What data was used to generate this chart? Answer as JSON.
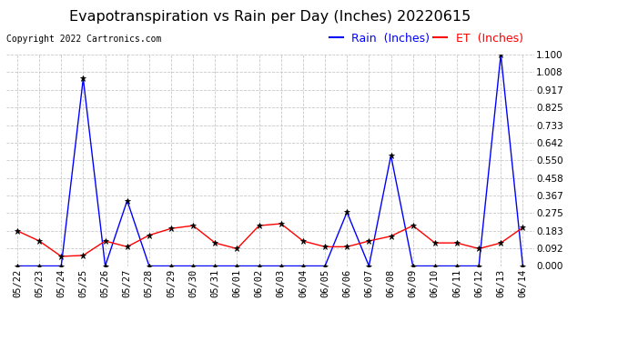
{
  "title": "Evapotranspiration vs Rain per Day (Inches) 20220615",
  "copyright": "Copyright 2022 Cartronics.com",
  "legend_rain": "Rain  (Inches)",
  "legend_et": "ET  (Inches)",
  "dates": [
    "05/22",
    "05/23",
    "05/24",
    "05/25",
    "05/26",
    "05/27",
    "05/28",
    "05/29",
    "05/30",
    "05/31",
    "06/01",
    "06/02",
    "06/03",
    "06/04",
    "06/05",
    "06/06",
    "06/07",
    "06/08",
    "06/09",
    "06/10",
    "06/11",
    "06/12",
    "06/13",
    "06/14"
  ],
  "rain": [
    0.0,
    0.0,
    0.0,
    0.975,
    0.0,
    0.34,
    0.0,
    0.0,
    0.0,
    0.0,
    0.0,
    0.0,
    0.0,
    0.0,
    0.0,
    0.28,
    0.0,
    0.575,
    0.0,
    0.0,
    0.0,
    0.0,
    1.1,
    0.0
  ],
  "et": [
    0.183,
    0.13,
    0.05,
    0.055,
    0.13,
    0.1,
    0.16,
    0.195,
    0.21,
    0.12,
    0.09,
    0.21,
    0.22,
    0.13,
    0.1,
    0.1,
    0.13,
    0.155,
    0.21,
    0.12,
    0.12,
    0.09,
    0.12,
    0.2
  ],
  "ylim": [
    0.0,
    1.1
  ],
  "yticks": [
    0.0,
    0.092,
    0.183,
    0.275,
    0.367,
    0.458,
    0.55,
    0.642,
    0.733,
    0.825,
    0.917,
    1.008,
    1.1
  ],
  "rain_color": "#0000ff",
  "et_color": "#ff0000",
  "background_color": "#ffffff",
  "grid_color": "#bbbbbb",
  "title_fontsize": 11.5,
  "tick_fontsize": 7.5,
  "legend_fontsize": 9,
  "copyright_fontsize": 7
}
